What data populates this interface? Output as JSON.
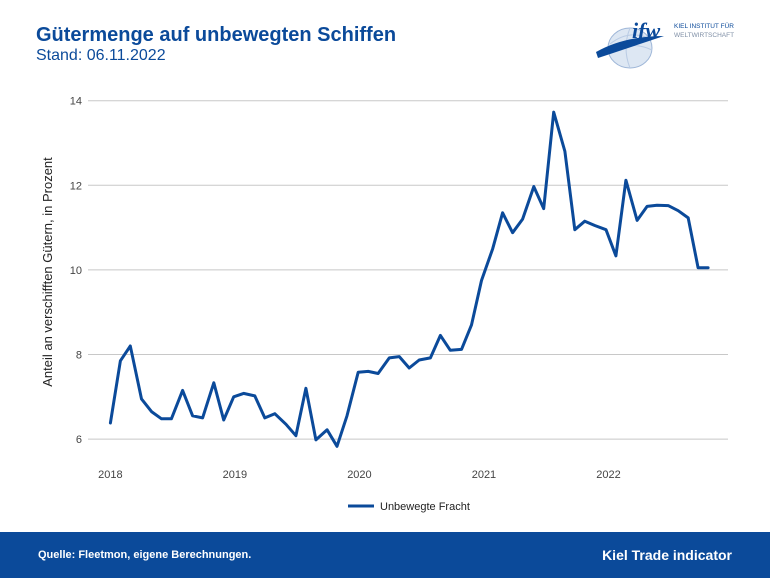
{
  "header": {
    "title": "Gütermenge auf unbewegten Schiffen",
    "subtitle": "Stand: 06.11.2022"
  },
  "logo": {
    "wordmark": "ifw",
    "line1": "KIEL INSTITUT FÜR",
    "line2": "WELTWIRTSCHAFT"
  },
  "footer": {
    "source": "Quelle: Fleetmon, eigene Berechnungen.",
    "brand": "Kiel Trade indicator"
  },
  "colors": {
    "brand": "#0b4a9a",
    "line": "#0b4a9a",
    "grid": "#c8c8c8"
  },
  "chart_data": {
    "type": "line",
    "title": "Gütermenge auf unbewegten Schiffen",
    "xlabel": "",
    "ylabel": "Anteil an verschifften Gütern, in Prozent",
    "ylim": [
      5.6,
      14.3
    ],
    "yticks": [
      6,
      8,
      10,
      12,
      14
    ],
    "xlim": [
      2017.82,
      2022.96
    ],
    "xticks": [
      2018,
      2019,
      2020,
      2021,
      2022
    ],
    "grid": "horizontal",
    "legend": "bottom",
    "series": [
      {
        "name": "Unbewegte Fracht",
        "color": "#0b4a9a",
        "x": [
          2018.0,
          2018.08,
          2018.16,
          2018.25,
          2018.33,
          2018.41,
          2018.49,
          2018.58,
          2018.66,
          2018.74,
          2018.83,
          2018.91,
          2018.99,
          2019.07,
          2019.16,
          2019.24,
          2019.32,
          2019.41,
          2019.49,
          2019.57,
          2019.65,
          2019.74,
          2019.82,
          2019.9,
          2019.99,
          2020.07,
          2020.15,
          2020.24,
          2020.32,
          2020.4,
          2020.48,
          2020.57,
          2020.65,
          2020.73,
          2020.82,
          2020.9,
          2020.98,
          2021.07,
          2021.15,
          2021.23,
          2021.31,
          2021.4,
          2021.48,
          2021.56,
          2021.65,
          2021.73,
          2021.81,
          2021.89,
          2021.98,
          2022.06,
          2022.14,
          2022.23,
          2022.31,
          2022.39,
          2022.48,
          2022.56,
          2022.64,
          2022.72,
          2022.8
        ],
        "values": [
          6.38,
          7.85,
          8.2,
          6.95,
          6.65,
          6.48,
          6.48,
          7.15,
          6.55,
          6.5,
          7.33,
          6.45,
          7.0,
          7.08,
          7.02,
          6.5,
          6.6,
          6.35,
          6.08,
          7.2,
          5.98,
          6.22,
          5.83,
          6.55,
          7.58,
          7.6,
          7.55,
          7.92,
          7.95,
          7.68,
          7.87,
          7.92,
          8.45,
          8.1,
          8.12,
          8.7,
          9.75,
          10.5,
          11.35,
          10.88,
          11.2,
          11.97,
          11.45,
          13.73,
          12.8,
          10.95,
          11.15,
          11.05,
          10.95,
          10.33,
          12.12,
          11.17,
          11.5,
          11.53,
          11.52,
          11.4,
          11.23,
          10.05,
          10.05
        ]
      }
    ]
  }
}
